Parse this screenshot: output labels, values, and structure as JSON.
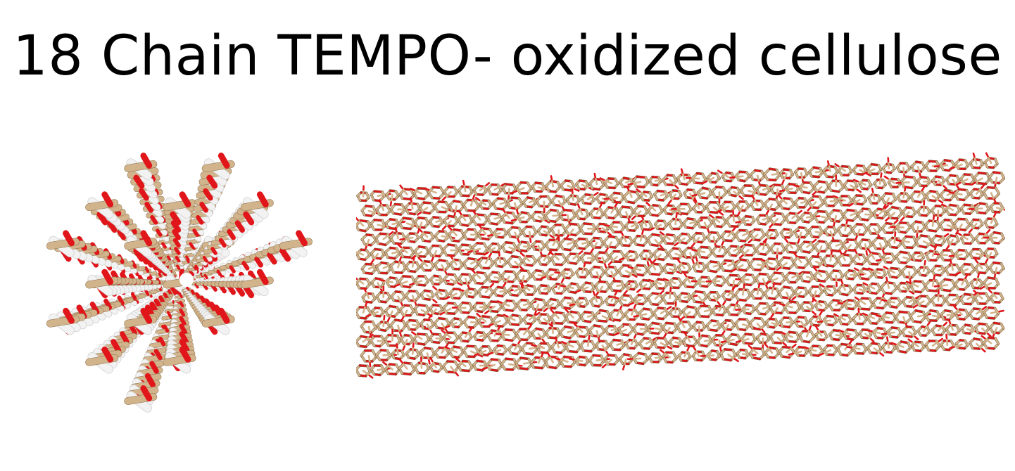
{
  "slide": {
    "title": "18 Chain TEMPO- oxidized cellulose"
  },
  "figures": {
    "end_view": {
      "kind": "molecular-render",
      "description_name": "cellulose-fibril-end-view"
    },
    "side_view": {
      "kind": "molecular-render",
      "description_name": "cellulose-fibril-side-view"
    }
  },
  "colors": {
    "background": "#ffffff",
    "title_text": "#000000",
    "carbon": "#d2b48c",
    "oxygen": "#e0161b",
    "hydrogen": "#f2f2f2",
    "bond_shadow": "#8a6f4a"
  }
}
